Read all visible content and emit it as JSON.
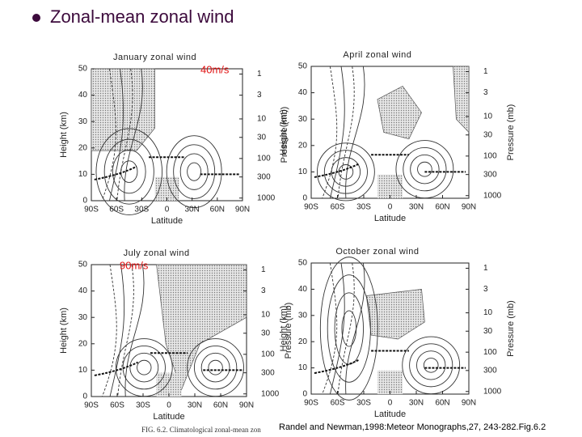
{
  "title": "Zonal-mean zonal wind",
  "panels": [
    {
      "title": "January zonal wind",
      "annotation": "40m/s"
    },
    {
      "title": "April zonal wind"
    },
    {
      "title": "July  zonal wind",
      "annotation": "90m/s"
    },
    {
      "title": "October zonal wind"
    }
  ],
  "axes": {
    "height_label": "Height (km)",
    "height_ticks": [
      "50",
      "40",
      "30",
      "20",
      "10",
      "0"
    ],
    "pressure_label": "Pressure (mb)",
    "pressure_ticks": [
      "1",
      "3",
      "10",
      "30",
      "100",
      "300",
      "1000"
    ],
    "latitude_label": "Latitude",
    "latitude_ticks": [
      "90S",
      "60S",
      "30S",
      "0",
      "30N",
      "60N",
      "90N"
    ]
  },
  "caption": "FIG. 6.2. Climatological zonal-mean zon",
  "citation": "Randel and Newman,1998:Meteor Monographs,27,  243-282.Fig.6.2"
}
